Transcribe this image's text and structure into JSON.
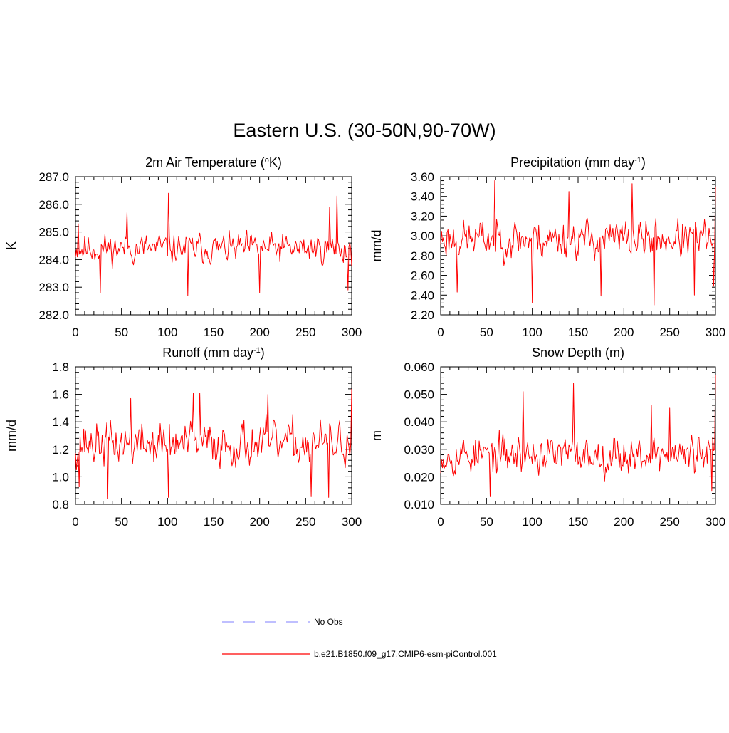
{
  "page": {
    "title": "Eastern U.S. (30-50N,90-70W)"
  },
  "legend": {
    "items": [
      {
        "label": "No Obs",
        "color": "#9999ff",
        "style": "dashed"
      },
      {
        "label": "b.e21.B1850.f09_g17.CMIP6-esm-piControl.001",
        "color": "#ff0000",
        "style": "solid"
      }
    ]
  },
  "colors": {
    "series": "#ff0000",
    "axis": "#000000"
  },
  "chart_data": [
    {
      "type": "line",
      "title": "2m Air Temperature (",
      "title_sup": "o",
      "title_suffix": "K)",
      "ylabel": "K",
      "xlim": [
        0,
        300
      ],
      "ylim": [
        282.0,
        287.0
      ],
      "yticks": [
        "282.0",
        "283.0",
        "284.0",
        "285.0",
        "286.0",
        "287.0"
      ],
      "xticks": [
        "0",
        "50",
        "100",
        "150",
        "200",
        "250",
        "300"
      ],
      "series": [
        {
          "name": "b.e21.B1850.f09_g17.CMIP6-esm-piControl.001",
          "mean": 284.4,
          "amp": 0.5,
          "seed": 11,
          "peaks": [
            [
              3,
              285.3
            ],
            [
              27,
              282.8
            ],
            [
              56,
              285.7
            ],
            [
              101,
              286.4
            ],
            [
              122,
              282.7
            ],
            [
              200,
              282.8
            ],
            [
              276,
              285.9
            ],
            [
              284,
              286.3
            ],
            [
              296,
              282.9
            ]
          ]
        }
      ]
    },
    {
      "type": "line",
      "title": "Precipitation (mm day",
      "title_sup": "-1",
      "title_suffix": ")",
      "ylabel": "mm/d",
      "xlim": [
        0,
        300
      ],
      "ylim": [
        2.2,
        3.6
      ],
      "yticks": [
        "2.20",
        "2.40",
        "2.60",
        "2.80",
        "3.00",
        "3.20",
        "3.40",
        "3.60"
      ],
      "xticks": [
        "0",
        "50",
        "100",
        "150",
        "200",
        "250",
        "300"
      ],
      "series": [
        {
          "name": "b.e21.B1850.f09_g17.CMIP6-esm-piControl.001",
          "mean": 2.97,
          "amp": 0.18,
          "seed": 23,
          "peaks": [
            [
              18,
              2.43
            ],
            [
              59,
              3.56
            ],
            [
              100,
              2.32
            ],
            [
              140,
              3.45
            ],
            [
              175,
              2.39
            ],
            [
              209,
              3.53
            ],
            [
              233,
              2.3
            ],
            [
              277,
              2.4
            ],
            [
              298,
              2.49
            ],
            [
              300,
              3.5
            ]
          ]
        }
      ]
    },
    {
      "type": "line",
      "title": "Runoff (mm day",
      "title_sup": "-1",
      "title_suffix": ")",
      "ylabel": "mm/d",
      "xlim": [
        0,
        300
      ],
      "ylim": [
        0.8,
        1.8
      ],
      "yticks": [
        "0.8",
        "1.0",
        "1.2",
        "1.4",
        "1.6",
        "1.8"
      ],
      "xticks": [
        "0",
        "50",
        "100",
        "150",
        "200",
        "250",
        "300"
      ],
      "series": [
        {
          "name": "b.e21.B1850.f09_g17.CMIP6-esm-piControl.001",
          "mean": 1.24,
          "amp": 0.15,
          "seed": 37,
          "peaks": [
            [
              4,
              0.93
            ],
            [
              35,
              0.84
            ],
            [
              60,
              1.57
            ],
            [
              101,
              0.85
            ],
            [
              128,
              1.61
            ],
            [
              135,
              1.61
            ],
            [
              209,
              1.6
            ],
            [
              256,
              0.86
            ],
            [
              275,
              0.85
            ],
            [
              300,
              1.64
            ]
          ]
        }
      ]
    },
    {
      "type": "line",
      "title": "Snow Depth (m)",
      "title_sup": "",
      "title_suffix": "",
      "ylabel": "m",
      "xlim": [
        0,
        300
      ],
      "ylim": [
        0.01,
        0.06
      ],
      "yticks": [
        "0.010",
        "0.020",
        "0.030",
        "0.040",
        "0.050",
        "0.060"
      ],
      "xticks": [
        "0",
        "50",
        "100",
        "150",
        "200",
        "250",
        "300"
      ],
      "series": [
        {
          "name": "b.e21.B1850.f09_g17.CMIP6-esm-piControl.001",
          "mean": 0.028,
          "amp": 0.0065,
          "seed": 53,
          "peaks": [
            [
              54,
              0.013
            ],
            [
              90,
              0.051
            ],
            [
              145,
              0.054
            ],
            [
              230,
              0.046
            ],
            [
              250,
              0.045
            ],
            [
              296,
              0.015
            ],
            [
              300,
              0.057
            ]
          ]
        }
      ]
    }
  ]
}
